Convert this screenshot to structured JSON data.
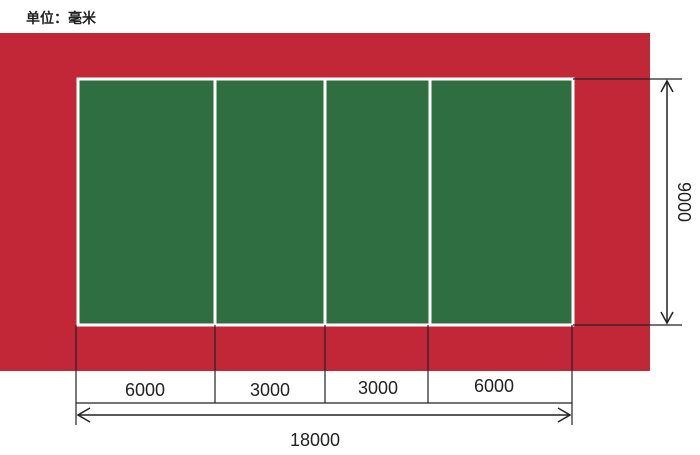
{
  "unit_label": "单位：毫米",
  "colors": {
    "court": "#2e6e40",
    "free_zone": "#c12737",
    "lines": "#ffffff",
    "dimension": "#222222"
  },
  "court": {
    "length": 18000,
    "width": 9000,
    "zones": [
      6000,
      3000,
      3000,
      6000
    ]
  },
  "dimensions": {
    "segments": [
      "6000",
      "3000",
      "3000",
      "6000"
    ],
    "total_length": "18000",
    "width": "9000"
  }
}
